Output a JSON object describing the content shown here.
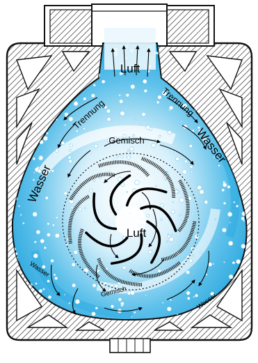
{
  "diagram": {
    "labels": {
      "luft_top": "Luft",
      "trennung_left": "Trennung",
      "trennung_right": "Trennung",
      "gemisch_top": "Gemisch",
      "wasser_left": "Wasser",
      "wasser_right": "Wasser",
      "luft_center": "Luft",
      "wasser_bottom_left": "Wasser",
      "gemisch_bottom": "Gemisch",
      "wasser_bottom_right": "Wasser"
    },
    "colors": {
      "water": "#29a9df",
      "water_light": "#bfe7f7",
      "hatch": "#222222",
      "outline": "#111111"
    }
  }
}
